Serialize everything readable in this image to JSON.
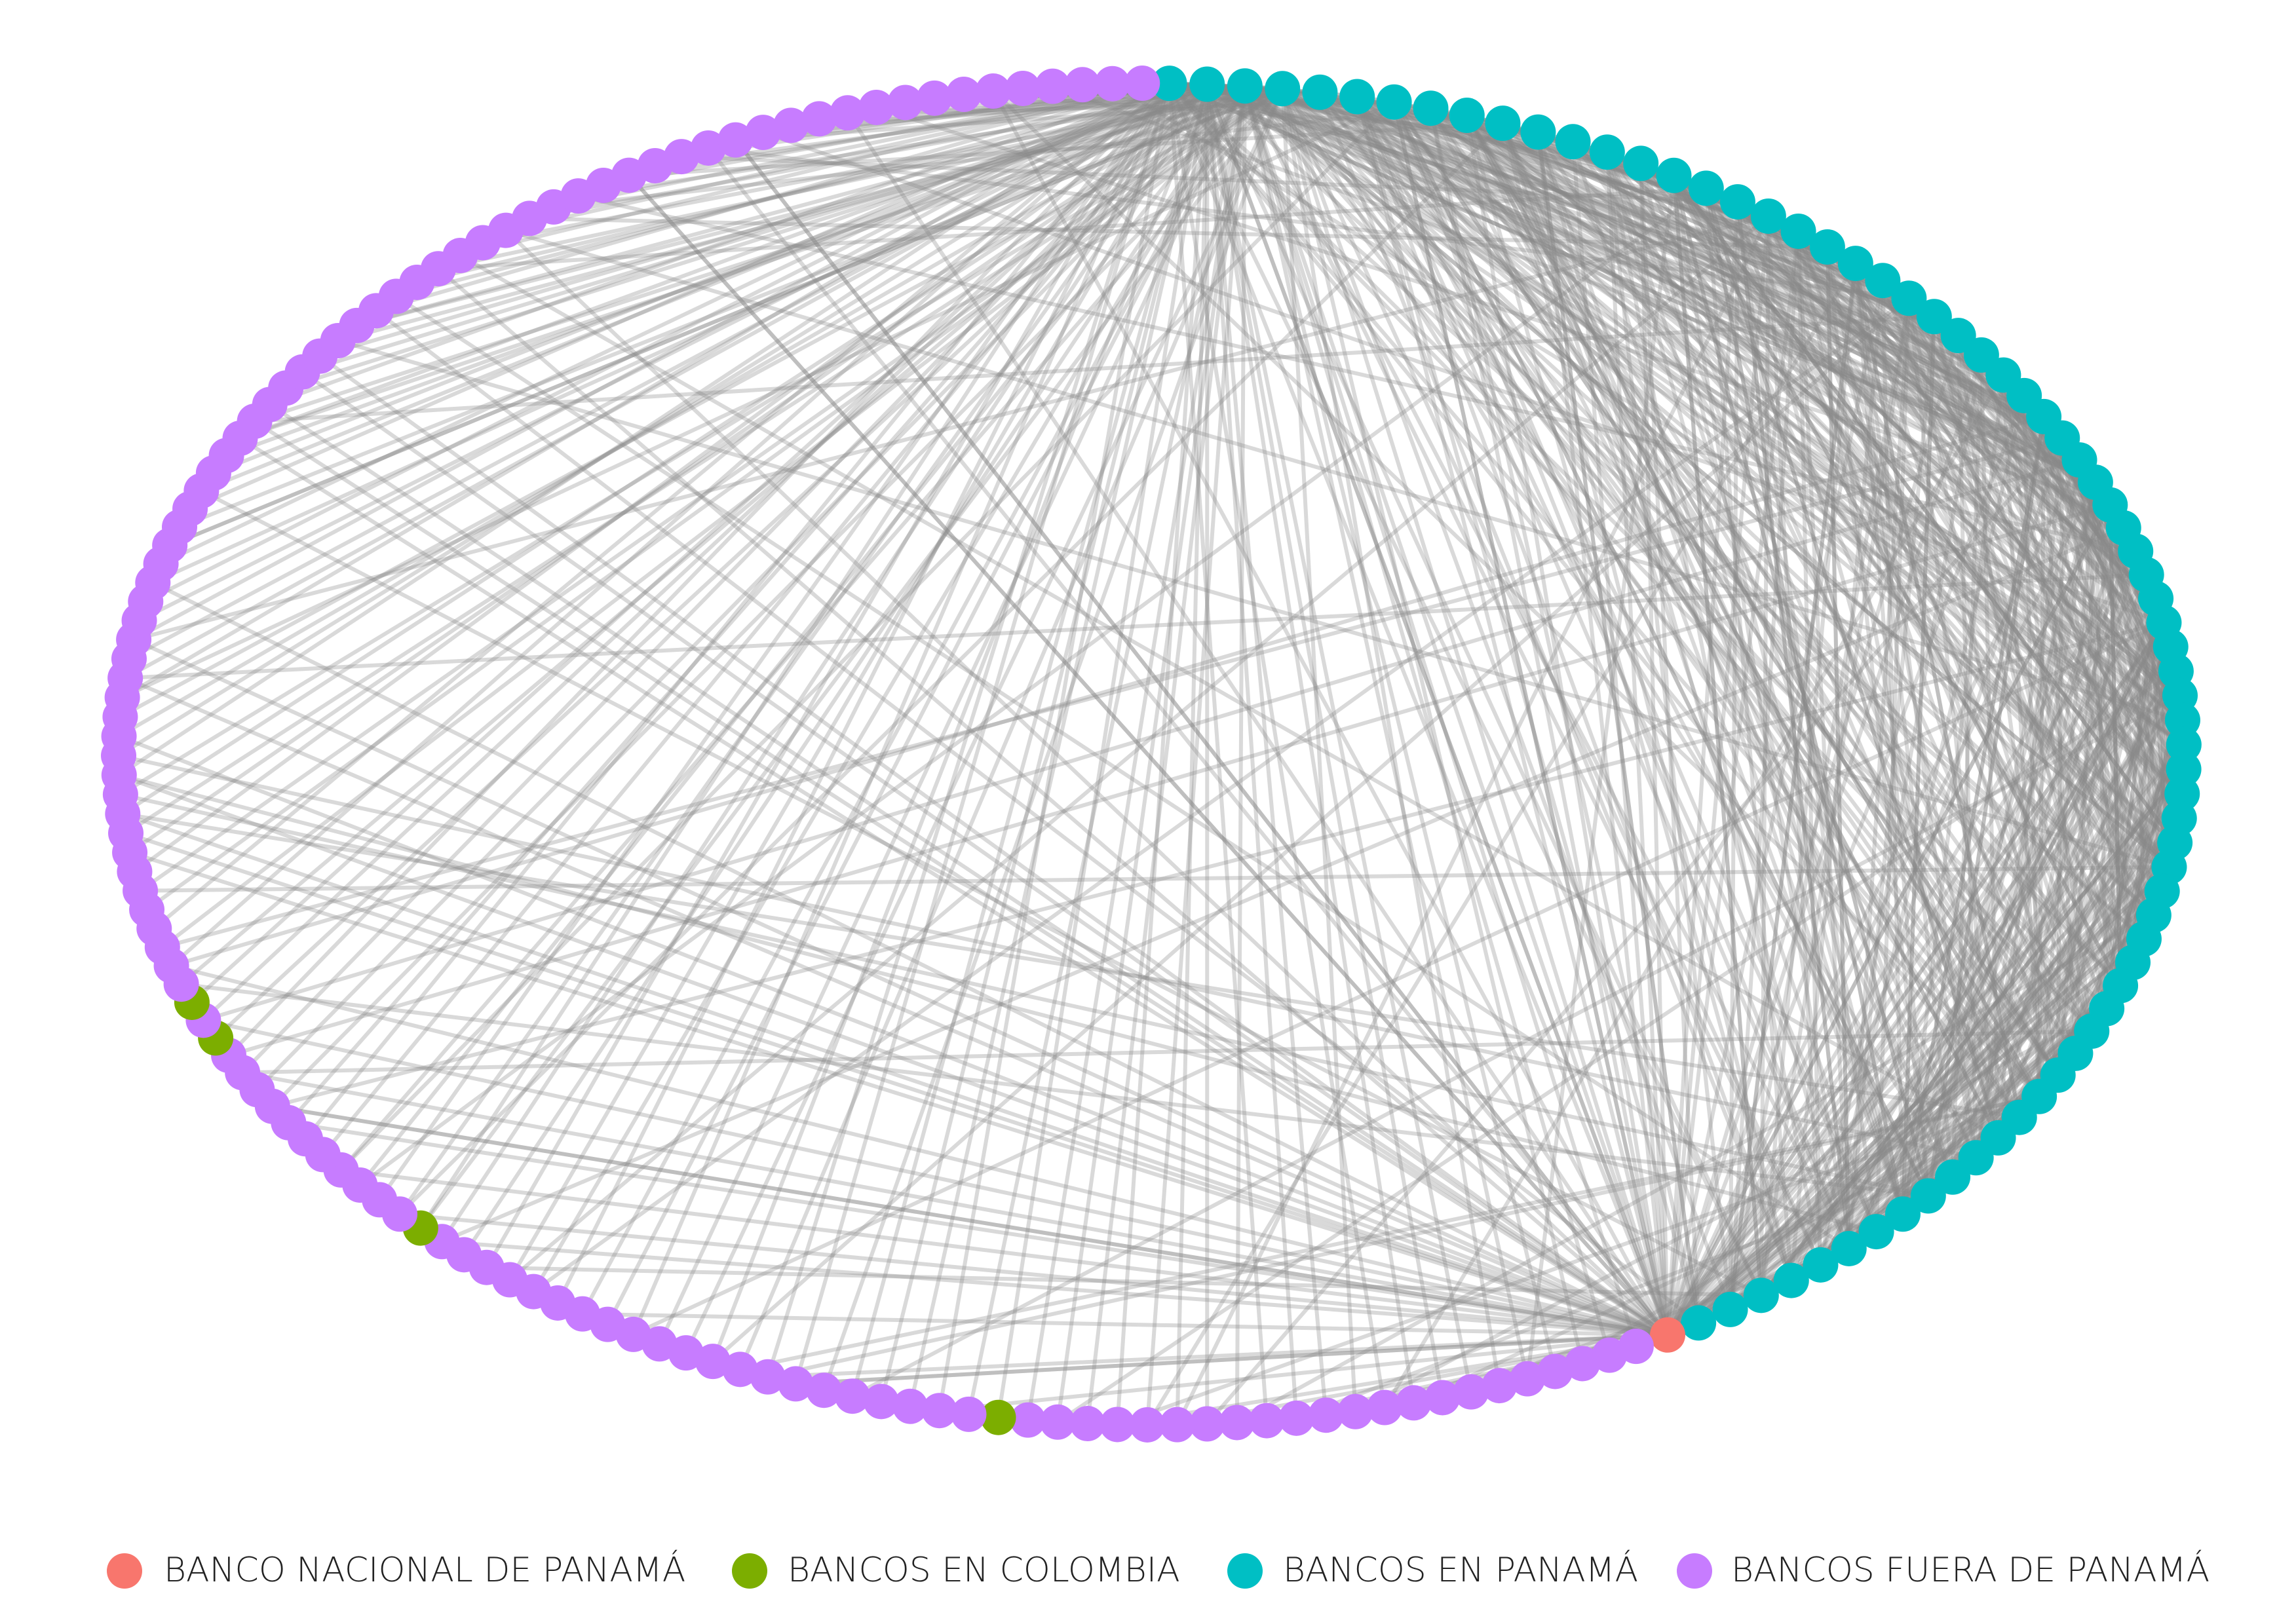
{
  "legend": [
    {
      "label": "BANCO NACIONAL DE PANAMÁ",
      "color": "#f8766d"
    },
    {
      "label": "BANCOS EN COLOMBIA",
      "color": "#7cae00"
    },
    {
      "label": "BANCOS EN PANAMÁ",
      "color": "#00bfc4"
    },
    {
      "label": "BANCOS FUERA DE PANAMÁ",
      "color": "#c77cff"
    }
  ]
}
